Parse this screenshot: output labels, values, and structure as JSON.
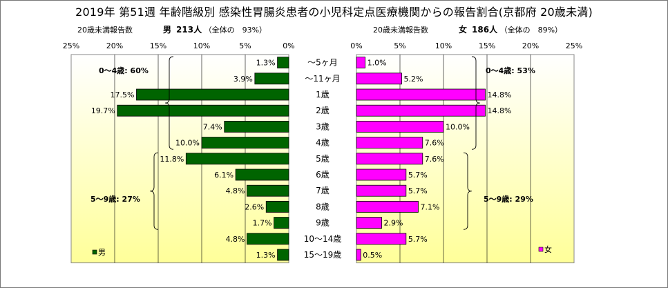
{
  "title": "2019年 第51週 年齢階級別 感染性胃腸炎患者の小児科定点医療機関からの報告割合(京都府 20歳未満)",
  "colors": {
    "male": "#006400",
    "female": "#ff00ff",
    "bg_bottom": "#ffff99",
    "bg_top": "#ffffff"
  },
  "chart_data": {
    "type": "bar",
    "categories": [
      "～5ヶ月",
      "～11ヶ月",
      "1歳",
      "2歳",
      "3歳",
      "4歳",
      "5歳",
      "6歳",
      "7歳",
      "8歳",
      "9歳",
      "10～14歳",
      "15～19歳"
    ],
    "male": {
      "heading_prefix": "20歳未満報告数",
      "sex_label": "男",
      "count_label": "213人",
      "share_label": "（全体の　93%）",
      "legend": "男",
      "values": [
        1.3,
        3.9,
        17.5,
        19.7,
        7.4,
        10.0,
        11.8,
        6.1,
        4.8,
        2.6,
        1.7,
        4.8,
        1.3
      ],
      "labels": [
        "1.3%",
        "3.9%",
        "17.5%",
        "19.7%",
        "7.4%",
        "10.0%",
        "11.8%",
        "6.1%",
        "4.8%",
        "2.6%",
        "1.7%",
        "4.8%",
        "1.3%"
      ],
      "group_0_4": "0～4歳: 60%",
      "group_5_9": "5～9歳: 27%"
    },
    "female": {
      "heading_prefix": "20歳未満報告数",
      "sex_label": "女",
      "count_label": "186人",
      "share_label": "（全体の　89%）",
      "legend": "女",
      "values": [
        1.0,
        5.2,
        14.8,
        14.8,
        10.0,
        7.6,
        7.6,
        5.7,
        5.7,
        7.1,
        2.9,
        5.7,
        0.5
      ],
      "labels": [
        "1.0%",
        "5.2%",
        "14.8%",
        "14.8%",
        "10.0%",
        "7.6%",
        "7.6%",
        "5.7%",
        "5.7%",
        "7.1%",
        "2.9%",
        "5.7%",
        "0.5%"
      ],
      "group_0_4": "0～4歳: 53%",
      "group_5_9": "5～9歳: 29%"
    },
    "x_ticks_left": [
      "25%",
      "20%",
      "15%",
      "10%",
      "5%",
      "0%"
    ],
    "x_ticks_right": [
      "0%",
      "5%",
      "10%",
      "15%",
      "20%",
      "25%"
    ],
    "xlim": [
      0,
      25
    ],
    "grid": true
  }
}
